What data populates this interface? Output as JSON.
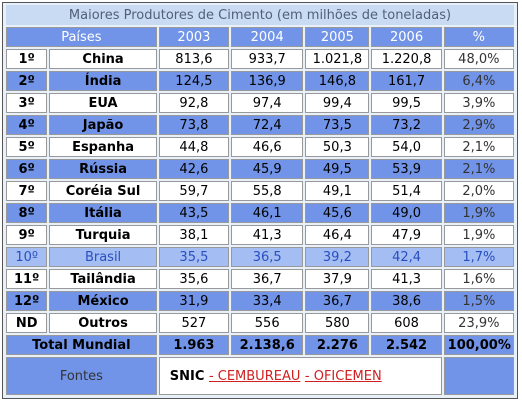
{
  "title": "Maiores Produtores de Cimento (em milhões de toneladas)",
  "header": [
    "Países",
    "2003",
    "2004",
    "2005",
    "2006",
    "%"
  ],
  "rows": [
    [
      "1º",
      "China",
      "813,6",
      "933,7",
      "1.021,8",
      "1.220,8",
      "48,0%"
    ],
    [
      "2º",
      "Índia",
      "124,5",
      "136,9",
      "146,8",
      "161,7",
      "6,4%"
    ],
    [
      "3º",
      "EUA",
      "92,8",
      "97,4",
      "99,4",
      "99,5",
      "3,9%"
    ],
    [
      "4º",
      "Japão",
      "73,8",
      "72,4",
      "73,5",
      "73,2",
      "2,9%"
    ],
    [
      "5º",
      "Espanha",
      "44,8",
      "46,6",
      "50,3",
      "54,0",
      "2,1%"
    ],
    [
      "6º",
      "Rússia",
      "42,6",
      "45,9",
      "49,5",
      "53,9",
      "2,1%"
    ],
    [
      "7º",
      "Coréia Sul",
      "59,7",
      "55,8",
      "49,1",
      "51,4",
      "2,0%"
    ],
    [
      "8º",
      "Itália",
      "43,5",
      "46,1",
      "45,6",
      "49,0",
      "1,9%"
    ],
    [
      "9º",
      "Turquia",
      "38,1",
      "41,3",
      "46,4",
      "47,9",
      "1,9%"
    ],
    [
      "10º",
      "Brasil",
      "35,5",
      "36,5",
      "39,2",
      "42,4",
      "1,7%"
    ],
    [
      "11º",
      "Tailândia",
      "35,6",
      "36,7",
      "37,9",
      "41,3",
      "1,6%"
    ],
    [
      "12º",
      "México",
      "31,9",
      "33,4",
      "36,7",
      "38,6",
      "1,5%"
    ],
    [
      "ND",
      "Outros",
      "527",
      "556",
      "580",
      "608",
      "23,9%"
    ]
  ],
  "total": [
    "Total Mundial",
    "1.963",
    "2.138,6",
    "2.276",
    "2.542",
    "100,00%"
  ],
  "footer": {
    "label": "Fontes",
    "source": "SNIC",
    "links": [
      "- CEMBUREAU",
      "- OFICEMEN"
    ]
  }
}
